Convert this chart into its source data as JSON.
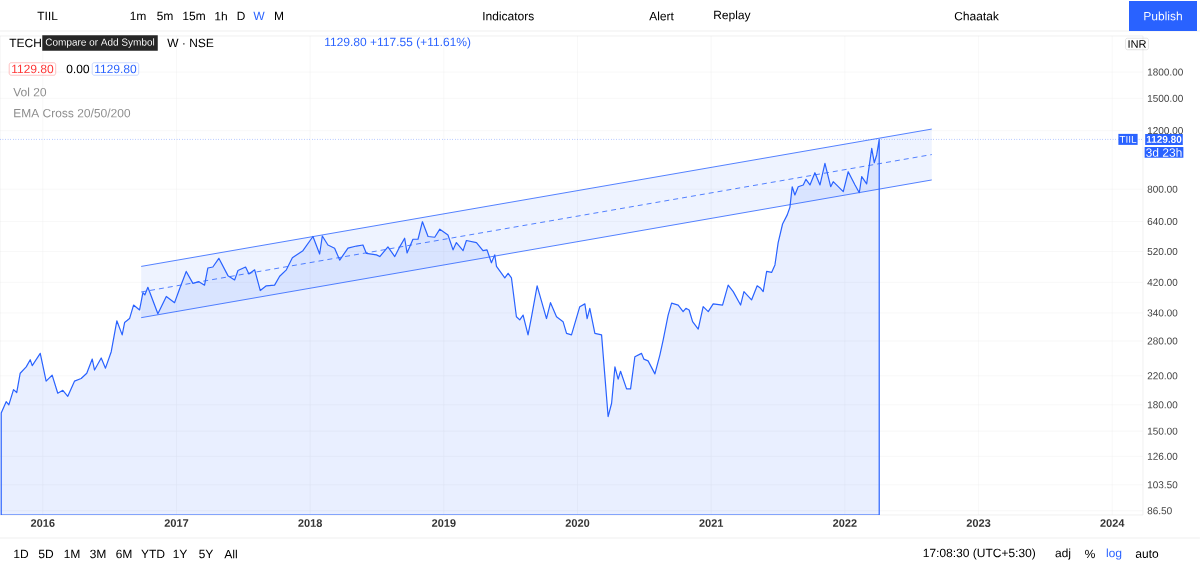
{
  "chart_data": {
    "type": "area",
    "ylabel": "INR",
    "log": true,
    "grid": true,
    "xlim": [
      2015.68,
      2024.23
    ],
    "xticks": [
      2016,
      2017,
      2018,
      2019,
      2020,
      2021,
      2022,
      2023,
      2024
    ],
    "ylim": [
      84,
      2310
    ],
    "yticks": [
      {
        "value": 86.5,
        "label": "86.50"
      },
      {
        "value": 103.5,
        "label": "103.50"
      },
      {
        "value": 126,
        "label": "126.00"
      },
      {
        "value": 150,
        "label": "150.00"
      },
      {
        "value": 180,
        "label": "180.00"
      },
      {
        "value": 220,
        "label": "220.00"
      },
      {
        "value": 280,
        "label": "280.00"
      },
      {
        "value": 340,
        "label": "340.00"
      },
      {
        "value": 420,
        "label": "420.00"
      },
      {
        "value": 520,
        "label": "520.00"
      },
      {
        "value": 640,
        "label": "640.00"
      },
      {
        "value": 800,
        "label": "800.00"
      },
      {
        "value": 1200,
        "label": "1200.00"
      },
      {
        "value": 1500,
        "label": "1500.00"
      },
      {
        "value": 1800,
        "label": "1800.00"
      }
    ],
    "series": [
      {
        "color": "#2962ff",
        "x": [
          2015.689,
          2015.726,
          2015.746,
          2015.781,
          2015.805,
          2015.831,
          2015.876,
          2015.906,
          2015.921,
          2015.981,
          2016.025,
          2016.07,
          2016.112,
          2016.15,
          2016.187,
          2016.237,
          2016.287,
          2016.329,
          2016.37,
          2016.387,
          2016.437,
          2016.469,
          2016.512,
          2016.554,
          2016.594,
          2016.612,
          2016.649,
          2016.679,
          2016.724,
          2016.749,
          2016.763,
          2016.786,
          2016.861,
          2016.924,
          2016.986,
          2017.023,
          2017.073,
          2017.123,
          2017.168,
          2017.21,
          2017.235,
          2017.272,
          2017.317,
          2017.385,
          2017.435,
          2017.46,
          2017.517,
          2017.542,
          2017.585,
          2017.627,
          2017.672,
          2017.734,
          2017.772,
          2017.822,
          2017.867,
          2017.946,
          2018.021,
          2018.071,
          2018.091,
          2018.133,
          2018.183,
          2018.221,
          2018.283,
          2018.346,
          2018.395,
          2018.421,
          2018.496,
          2018.521,
          2018.582,
          2018.633,
          2018.67,
          2018.707,
          2018.725,
          2018.769,
          2018.807,
          2018.84,
          2018.882,
          2018.932,
          2018.97,
          2019.031,
          2019.069,
          2019.094,
          2019.144,
          2019.169,
          2019.244,
          2019.293,
          2019.323,
          2019.356,
          2019.381,
          2019.394,
          2019.456,
          2019.481,
          2019.506,
          2019.543,
          2019.568,
          2019.593,
          2019.63,
          2019.656,
          2019.698,
          2019.768,
          2019.798,
          2019.843,
          2019.892,
          2019.918,
          2019.955,
          2020.017,
          2020.055,
          2020.072,
          2020.092,
          2020.13,
          2020.18,
          2020.229,
          2020.255,
          2020.28,
          2020.304,
          2020.322,
          2020.367,
          2020.397,
          2020.429,
          2020.479,
          2020.496,
          2020.528,
          2020.579,
          2020.616,
          2020.641,
          2020.678,
          2020.704,
          2020.753,
          2020.79,
          2020.811,
          2020.835,
          2020.861,
          2020.903,
          2020.94,
          2020.978,
          2021.015,
          2021.085,
          2021.127,
          2021.165,
          2021.22,
          2021.245,
          2021.302,
          2021.344,
          2021.37,
          2021.389,
          2021.415,
          2021.452,
          2021.477,
          2021.501,
          2021.534,
          2021.569,
          2021.589,
          2021.606,
          2021.626,
          2021.651,
          2021.689,
          2021.709,
          2021.739,
          2021.776,
          2021.814,
          2021.851,
          2021.894,
          2021.913,
          2021.988,
          2022.025,
          2022.076,
          2022.108,
          2022.126,
          2022.163,
          2022.201,
          2022.22,
          2022.238,
          2022.257
        ],
        "values": [
          170,
          184,
          180,
          200,
          196,
          224,
          234,
          246,
          236,
          257,
          212,
          221,
          195,
          199,
          191,
          212,
          216,
          224,
          247,
          229,
          249,
          232,
          260,
          322,
          292,
          318,
          327,
          359,
          347,
          391,
          385,
          406,
          338,
          381,
          365,
          401,
          453,
          417,
          422,
          412,
          464,
          467,
          496,
          440,
          427,
          456,
          467,
          445,
          458,
          397,
          410,
          412,
          438,
          458,
          498,
          523,
          577,
          511,
          579,
          544,
          532,
          490,
          532,
          540,
          544,
          513,
          508,
          502,
          537,
          502,
          537,
          570,
          515,
          566,
          566,
          639,
          577,
          574,
          607,
          583,
          526,
          553,
          523,
          561,
          553,
          523,
          526,
          481,
          508,
          469,
          433,
          447,
          433,
          331,
          324,
          335,
          292,
          331,
          410,
          327,
          365,
          331,
          320,
          295,
          292,
          355,
          362,
          327,
          351,
          295,
          292,
          166,
          182,
          234,
          215,
          227,
          201,
          201,
          251,
          257,
          247,
          244,
          223,
          254,
          282,
          335,
          364,
          359,
          343,
          351,
          347,
          320,
          304,
          355,
          343,
          362,
          359,
          412,
          394,
          359,
          394,
          372,
          410,
          403,
          394,
          453,
          450,
          474,
          553,
          629,
          670,
          706,
          814,
          769,
          814,
          824,
          857,
          824,
          897,
          824,
          957,
          814,
          843,
          787,
          903,
          824,
          781,
          873,
          830,
          1062,
          961,
          1014,
          1129.8
        ]
      },
      {
        "type": "line",
        "line_style": "dashed",
        "color": "#2962ff",
        "x": [
          2016.736,
          2022.65
        ],
        "values": [
          393,
          1017
        ],
        "lower": [
          329,
          853
        ],
        "upper": [
          469,
          1213
        ]
      },
      {
        "type": "line",
        "line_style": "solid",
        "color": "#2962ff",
        "x": [
          2016.736,
          2022.65
        ],
        "values": [
          469,
          1213
        ]
      },
      {
        "type": "line",
        "line_style": "solid",
        "color": "#2962ff",
        "x": [
          2016.736,
          2022.65
        ],
        "values": [
          329,
          853
        ]
      }
    ],
    "ref_lines": [
      {
        "axis": "y",
        "value": 1129.8,
        "label": "1129.80",
        "color": "#2962ff",
        "line_style": "dotted"
      }
    ],
    "annotations": [
      "TIIL",
      "1m",
      "5m",
      "15m",
      "1h",
      "D",
      "W",
      "M",
      "Indicators",
      "Alert",
      "Replay",
      "Chaatak",
      "Publish",
      "Compare or Add Symbol",
      "TECH",
      "W · NSE",
      "1129.80 +117.55 (+11.61%)",
      "1129.80",
      "0.00",
      "1129.80",
      "Vol 20",
      "EMA Cross 20/50/200",
      "1D",
      "5D",
      "1M",
      "3M",
      "6M",
      "YTD",
      "1Y",
      "5Y",
      "All",
      "17:08:30 (UTC+5:30)",
      "adj",
      "%",
      "log",
      "auto",
      "TIIL",
      "3d 23h"
    ]
  }
}
